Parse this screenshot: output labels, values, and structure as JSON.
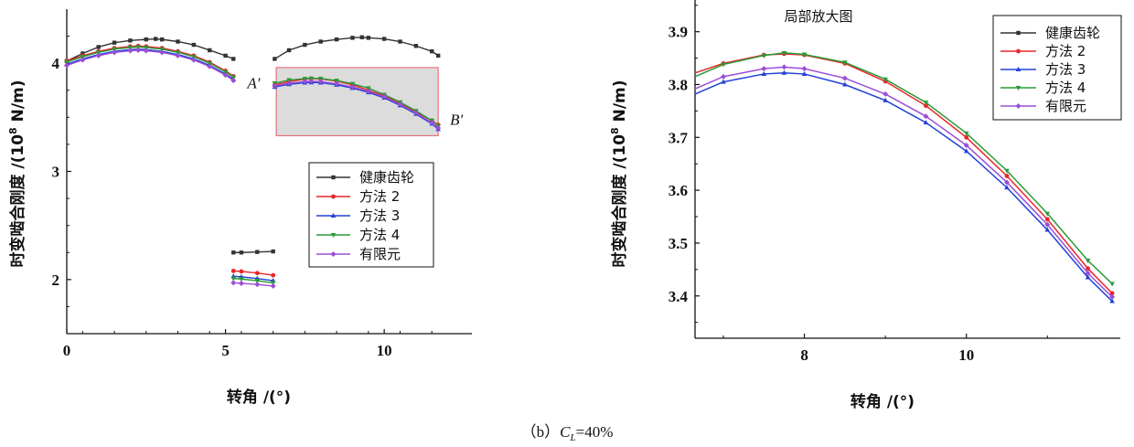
{
  "caption": {
    "prefix": "（b）",
    "var": "C",
    "sub": "L",
    "suffix": "=40%"
  },
  "colors": {
    "健康齿轮": "#333333",
    "方法2": "#e8262b",
    "方法3": "#2140d6",
    "方法4": "#2a9a37",
    "有限元": "#9b4ed6"
  },
  "chart_data": [
    {
      "type": "line",
      "title": "",
      "xlabel": "转角 /(°)",
      "ylabel_main": "时变啮合刚度 /(10",
      "ylabel_sup": "8",
      "ylabel_unit": " N/m)",
      "xlim": [
        0,
        12.3
      ],
      "ylim": [
        1.5,
        4.5
      ],
      "xticks": [
        0,
        5,
        10
      ],
      "xtick_labels": [
        "0",
        "5",
        "10"
      ],
      "yticks": [
        2,
        3,
        4
      ],
      "ytick_labels": [
        "2",
        "3",
        "4"
      ],
      "grid": false,
      "legend_position": "center-right",
      "annotations": [
        {
          "text": "A′",
          "x": 6.55,
          "y": 3.82
        },
        {
          "text": "B′",
          "x": 11.9,
          "y": 3.48
        }
      ],
      "highlight_box": {
        "x": [
          6.6,
          11.7
        ],
        "y": [
          3.33,
          3.96
        ]
      },
      "series": [
        {
          "name": "健康齿轮",
          "segments": [
            {
              "x": [
                0,
                0.5,
                1.0,
                1.5,
                2.0,
                2.5,
                2.8,
                3.0,
                3.5,
                4.0,
                4.5,
                5.0,
                5.25
              ],
              "y": [
                4.02,
                4.09,
                4.15,
                4.19,
                4.21,
                4.22,
                4.225,
                4.22,
                4.2,
                4.17,
                4.12,
                4.07,
                4.04
              ]
            },
            {
              "x": [
                5.25,
                5.5,
                6.0,
                6.5
              ],
              "y": [
                2.25,
                2.25,
                2.255,
                2.26
              ]
            },
            {
              "x": [
                6.55,
                7.0,
                7.5,
                8.0,
                8.5,
                9.0,
                9.3,
                9.5,
                10.0,
                10.5,
                11.0,
                11.5,
                11.7
              ],
              "y": [
                4.04,
                4.12,
                4.17,
                4.2,
                4.22,
                4.235,
                4.24,
                4.235,
                4.225,
                4.2,
                4.16,
                4.11,
                4.07
              ]
            }
          ]
        },
        {
          "name": "方法 2",
          "segments": [
            {
              "x": [
                0,
                0.5,
                1.0,
                1.5,
                2.0,
                2.25,
                2.5,
                3.0,
                3.5,
                4.0,
                4.5,
                5.0,
                5.25
              ],
              "y": [
                4.02,
                4.07,
                4.11,
                4.14,
                4.155,
                4.16,
                4.155,
                4.14,
                4.11,
                4.07,
                4.01,
                3.93,
                3.88
              ]
            },
            {
              "x": [
                5.25,
                5.5,
                6.0,
                6.5
              ],
              "y": [
                2.08,
                2.075,
                2.06,
                2.04
              ]
            },
            {
              "x": [
                6.55,
                7.0,
                7.5,
                7.7,
                8.0,
                8.5,
                9.0,
                9.5,
                10.0,
                10.5,
                11.0,
                11.5,
                11.7
              ],
              "y": [
                3.8,
                3.83,
                3.853,
                3.858,
                3.855,
                3.835,
                3.8,
                3.75,
                3.7,
                3.63,
                3.55,
                3.47,
                3.43
              ]
            }
          ]
        },
        {
          "name": "方法 3",
          "segments": [
            {
              "x": [
                0,
                0.5,
                1.0,
                1.5,
                2.0,
                2.25,
                2.5,
                3.0,
                3.5,
                4.0,
                4.5,
                5.0,
                5.25
              ],
              "y": [
                3.99,
                4.04,
                4.08,
                4.11,
                4.125,
                4.13,
                4.125,
                4.11,
                4.08,
                4.04,
                3.98,
                3.9,
                3.85
              ]
            },
            {
              "x": [
                5.25,
                5.5,
                6.0,
                6.5
              ],
              "y": [
                2.03,
                2.025,
                2.01,
                1.99
              ]
            },
            {
              "x": [
                6.55,
                7.0,
                7.5,
                7.7,
                8.0,
                8.5,
                9.0,
                9.5,
                10.0,
                10.5,
                11.0,
                11.5,
                11.7
              ],
              "y": [
                3.78,
                3.805,
                3.82,
                3.822,
                3.82,
                3.8,
                3.77,
                3.73,
                3.68,
                3.61,
                3.53,
                3.44,
                3.39
              ]
            }
          ]
        },
        {
          "name": "方法 4",
          "segments": [
            {
              "x": [
                0,
                0.5,
                1.0,
                1.5,
                2.0,
                2.25,
                2.5,
                3.0,
                3.5,
                4.0,
                4.5,
                5.0,
                5.25
              ],
              "y": [
                4.01,
                4.06,
                4.1,
                4.13,
                4.145,
                4.15,
                4.145,
                4.13,
                4.1,
                4.06,
                4.0,
                3.92,
                3.87
              ]
            },
            {
              "x": [
                5.25,
                5.5,
                6.0,
                6.5
              ],
              "y": [
                2.01,
                2.005,
                1.99,
                1.97
              ]
            },
            {
              "x": [
                6.55,
                7.0,
                7.5,
                7.7,
                8.0,
                8.5,
                9.0,
                9.5,
                10.0,
                10.5,
                11.0,
                11.5,
                11.7
              ],
              "y": [
                3.815,
                3.845,
                3.857,
                3.86,
                3.858,
                3.84,
                3.81,
                3.77,
                3.71,
                3.64,
                3.56,
                3.47,
                3.42
              ]
            }
          ]
        },
        {
          "name": "有限元",
          "segments": [
            {
              "x": [
                0,
                0.5,
                1.0,
                1.5,
                2.0,
                2.25,
                2.5,
                3.0,
                3.5,
                4.0,
                4.5,
                5.0,
                5.25
              ],
              "y": [
                3.98,
                4.03,
                4.07,
                4.1,
                4.115,
                4.12,
                4.115,
                4.1,
                4.07,
                4.03,
                3.97,
                3.89,
                3.84
              ]
            },
            {
              "x": [
                5.25,
                5.5,
                6.0,
                6.5
              ],
              "y": [
                1.97,
                1.965,
                1.955,
                1.94
              ]
            },
            {
              "x": [
                6.55,
                7.0,
                7.5,
                7.7,
                8.0,
                8.5,
                9.0,
                9.5,
                10.0,
                10.5,
                11.0,
                11.5,
                11.7
              ],
              "y": [
                3.79,
                3.815,
                3.83,
                3.833,
                3.83,
                3.81,
                3.78,
                3.74,
                3.69,
                3.62,
                3.54,
                3.45,
                3.4
              ]
            }
          ]
        }
      ]
    },
    {
      "type": "line",
      "title": "局部放大图",
      "xlabel": "转角 /(°)",
      "ylabel_main": "时变啮合刚度 /(10",
      "ylabel_sup": "8",
      "ylabel_unit": " N/m)",
      "xlim": [
        6.65,
        11.9
      ],
      "ylim": [
        3.32,
        3.96
      ],
      "xticks": [
        8,
        10
      ],
      "xtick_labels": [
        "8",
        "10"
      ],
      "yticks": [
        3.4,
        3.5,
        3.6,
        3.7,
        3.8,
        3.9
      ],
      "ytick_labels": [
        "3.4",
        "3.5",
        "3.6",
        "3.7",
        "3.8",
        "3.9"
      ],
      "grid": false,
      "legend_position": "top-right",
      "series": [
        {
          "name": "方法 2",
          "x": [
            6.65,
            7.0,
            7.5,
            7.75,
            8.0,
            8.5,
            9.0,
            9.5,
            10.0,
            10.5,
            11.0,
            11.5,
            11.8
          ],
          "y": [
            3.822,
            3.84,
            3.856,
            3.858,
            3.856,
            3.84,
            3.806,
            3.76,
            3.7,
            3.627,
            3.545,
            3.452,
            3.405
          ]
        },
        {
          "name": "方法 3",
          "x": [
            6.65,
            7.0,
            7.5,
            7.75,
            8.0,
            8.5,
            9.0,
            9.5,
            10.0,
            10.5,
            11.0,
            11.5,
            11.8
          ],
          "y": [
            3.782,
            3.805,
            3.82,
            3.822,
            3.82,
            3.8,
            3.77,
            3.728,
            3.674,
            3.605,
            3.525,
            3.435,
            3.39
          ]
        },
        {
          "name": "方法 4",
          "x": [
            6.65,
            7.0,
            7.5,
            7.75,
            8.0,
            8.5,
            9.0,
            9.5,
            10.0,
            10.5,
            11.0,
            11.5,
            11.8
          ],
          "y": [
            3.815,
            3.838,
            3.855,
            3.86,
            3.857,
            3.842,
            3.81,
            3.766,
            3.708,
            3.637,
            3.556,
            3.467,
            3.423
          ]
        },
        {
          "name": "有限元",
          "x": [
            6.65,
            7.0,
            7.5,
            7.75,
            8.0,
            8.5,
            9.0,
            9.5,
            10.0,
            10.5,
            11.0,
            11.5,
            11.8
          ],
          "y": [
            3.792,
            3.815,
            3.83,
            3.833,
            3.83,
            3.812,
            3.782,
            3.74,
            3.685,
            3.615,
            3.535,
            3.443,
            3.398
          ]
        }
      ],
      "legend_names": [
        "健康齿轮",
        "方法 2",
        "方法 3",
        "方法 4",
        "有限元"
      ]
    }
  ]
}
